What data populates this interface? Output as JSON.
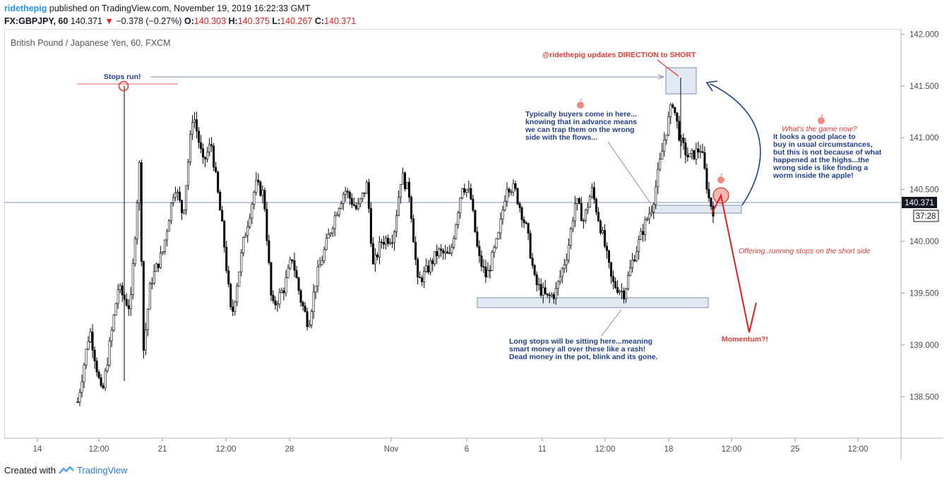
{
  "header": {
    "user": "ridethepig",
    "published": "published on TradingView.com, November 19, 2019 16:22:33 GMT"
  },
  "symbol_line": {
    "symbol": "FX:GBPJPY, 60",
    "last": "140.371",
    "change": "−0.378 (−0.27%)",
    "o_label": "O:",
    "o": "140.303",
    "h_label": "H:",
    "h": "140.375",
    "l_label": "L:",
    "l": "140.267",
    "c_label": "C:",
    "c": "140.371"
  },
  "chart_title": "British Pound / Japanese Yen, 60, FXCM",
  "footer": {
    "created_with": "Created with",
    "brand": "TradingView"
  },
  "colors": {
    "accent": "#2196f3",
    "down": "#e91e1e",
    "annotation_blue": "#1f3f8a",
    "annotation_red": "#e53935",
    "box_fill": "#e3e9f3"
  },
  "chart_data": {
    "type": "candlestick",
    "title": "British Pound / Japanese Yen, 60, FXCM",
    "ylim": [
      138.1,
      142.05
    ],
    "y_ticks": [
      "142.000",
      "141.500",
      "141.000",
      "140.500",
      "140.000",
      "139.500",
      "139.000",
      "138.500"
    ],
    "x_ticks": [
      "14",
      "12:00",
      "21",
      "12:00",
      "28",
      "Nov",
      "6",
      "11",
      "12:00",
      "18",
      "12:00",
      "25",
      "12:00"
    ],
    "last_price": "140.371",
    "countdown": "37:28",
    "path_points": [
      [
        0.0,
        138.45
      ],
      [
        3,
        139.15
      ],
      [
        6,
        138.5
      ],
      [
        10,
        139.55
      ],
      [
        13,
        139.35
      ],
      [
        15.5,
        140.9
      ],
      [
        16,
        138.85
      ],
      [
        18,
        139.6
      ],
      [
        21,
        139.9
      ],
      [
        24,
        140.55
      ],
      [
        26,
        140.25
      ],
      [
        28.5,
        141.25
      ],
      [
        31,
        140.75
      ],
      [
        33,
        140.95
      ],
      [
        36,
        140.05
      ],
      [
        38,
        139.25
      ],
      [
        41,
        140.0
      ],
      [
        44,
        140.55
      ],
      [
        46,
        140.45
      ],
      [
        48,
        139.35
      ],
      [
        51,
        139.55
      ],
      [
        53,
        139.85
      ],
      [
        55,
        139.45
      ],
      [
        57,
        139.2
      ],
      [
        59,
        139.65
      ],
      [
        62,
        140.05
      ],
      [
        64,
        140.3
      ],
      [
        66,
        140.5
      ],
      [
        69,
        140.3
      ],
      [
        71.5,
        140.55
      ],
      [
        73,
        139.75
      ],
      [
        75,
        140.0
      ],
      [
        78,
        140.05
      ],
      [
        80,
        140.65
      ],
      [
        82,
        140.45
      ],
      [
        84,
        139.6
      ],
      [
        86,
        139.7
      ],
      [
        89,
        139.9
      ],
      [
        92,
        139.85
      ],
      [
        95,
        140.55
      ],
      [
        97,
        140.45
      ],
      [
        99,
        139.85
      ],
      [
        101,
        139.65
      ],
      [
        104,
        140.05
      ],
      [
        106,
        140.55
      ],
      [
        108,
        140.5
      ],
      [
        111,
        140.1
      ],
      [
        113,
        139.6
      ],
      [
        116,
        139.45
      ],
      [
        118,
        139.5
      ],
      [
        121,
        139.9
      ],
      [
        123,
        140.4
      ],
      [
        125,
        140.2
      ],
      [
        127,
        140.5
      ],
      [
        130,
        140.0
      ],
      [
        132,
        139.6
      ],
      [
        135,
        139.5
      ],
      [
        137,
        139.8
      ],
      [
        140,
        140.15
      ],
      [
        142,
        140.35
      ],
      [
        145,
        141.0
      ],
      [
        147,
        141.35
      ],
      [
        149,
        140.95
      ],
      [
        151,
        140.8
      ],
      [
        154,
        140.9
      ],
      [
        156,
        140.4
      ],
      [
        157,
        140.3
      ]
    ],
    "annotations": [
      {
        "text": "Stops run!"
      },
      {
        "text": "@ridethepig updates DIRECTION to SHORT"
      },
      {
        "lines": [
          "Typically buyers come in here...",
          "knowing that in advance means",
          "we can trap them on the wrong",
          "side with the flows..."
        ]
      },
      {
        "lines": [
          "Long stops will be sitting here...meaning",
          "smart money all over these like a rash!",
          "Dead money in the pot, blink and its gone."
        ]
      },
      {
        "text": "What's the game now?"
      },
      {
        "lines": [
          "It looks a good place to",
          "buy in usual circumstances,",
          "but this is not because of what",
          "happened at the highs...the",
          "wrong side is like finding a",
          "worm inside the apple!"
        ]
      },
      {
        "text": "Offering..running stops on the short side"
      },
      {
        "text": "Momentum?!"
      }
    ]
  }
}
